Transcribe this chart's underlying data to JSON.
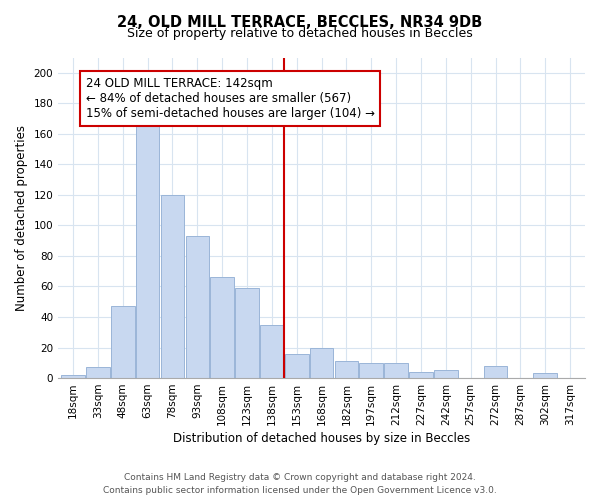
{
  "title_line1": "24, OLD MILL TERRACE, BECCLES, NR34 9DB",
  "title_line2": "Size of property relative to detached houses in Beccles",
  "xlabel": "Distribution of detached houses by size in Beccles",
  "ylabel": "Number of detached properties",
  "bar_color": "#c8d8f0",
  "bar_edgecolor": "#9ab5d8",
  "categories": [
    "18sqm",
    "33sqm",
    "48sqm",
    "63sqm",
    "78sqm",
    "93sqm",
    "108sqm",
    "123sqm",
    "138sqm",
    "153sqm",
    "168sqm",
    "182sqm",
    "197sqm",
    "212sqm",
    "227sqm",
    "242sqm",
    "257sqm",
    "272sqm",
    "287sqm",
    "302sqm",
    "317sqm"
  ],
  "values": [
    2,
    7,
    47,
    167,
    120,
    93,
    66,
    59,
    35,
    16,
    20,
    11,
    10,
    10,
    4,
    5,
    0,
    8,
    0,
    3,
    0
  ],
  "annotation_text": "24 OLD MILL TERRACE: 142sqm\n← 84% of detached houses are smaller (567)\n15% of semi-detached houses are larger (104) →",
  "vline_color": "#cc0000",
  "annotation_box_edgecolor": "#cc0000",
  "annotation_box_facecolor": "#ffffff",
  "ylim": [
    0,
    210
  ],
  "yticks": [
    0,
    20,
    40,
    60,
    80,
    100,
    120,
    140,
    160,
    180,
    200
  ],
  "footer_line1": "Contains HM Land Registry data © Crown copyright and database right 2024.",
  "footer_line2": "Contains public sector information licensed under the Open Government Licence v3.0.",
  "background_color": "#ffffff",
  "grid_color": "#d8e4f0",
  "title_fontsize": 10.5,
  "subtitle_fontsize": 9,
  "axis_label_fontsize": 8.5,
  "tick_fontsize": 7.5,
  "annotation_fontsize": 8.5,
  "footer_fontsize": 6.5
}
